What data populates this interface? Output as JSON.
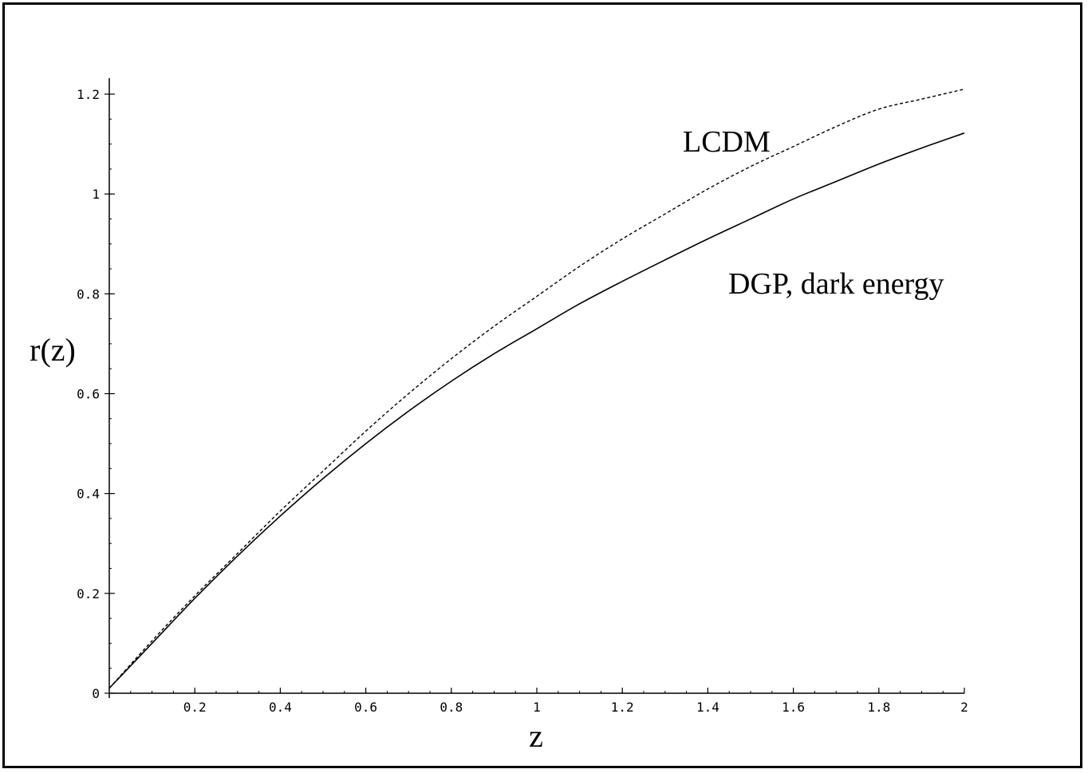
{
  "chart_data": {
    "type": "line",
    "xlabel": "z",
    "ylabel": "r(z)",
    "xlim": [
      0,
      2
    ],
    "ylim": [
      0,
      1.2
    ],
    "x_ticks": [
      {
        "value": 0.2,
        "label": "0.2"
      },
      {
        "value": 0.4,
        "label": "0.4"
      },
      {
        "value": 0.6,
        "label": "0.6"
      },
      {
        "value": 0.8,
        "label": "0.8"
      },
      {
        "value": 1.0,
        "label": "1"
      },
      {
        "value": 1.2,
        "label": "1.2"
      },
      {
        "value": 1.4,
        "label": "1.4"
      },
      {
        "value": 1.6,
        "label": "1.6"
      },
      {
        "value": 1.8,
        "label": "1.8"
      },
      {
        "value": 2.0,
        "label": "2"
      }
    ],
    "y_ticks": [
      {
        "value": 0,
        "label": "0"
      },
      {
        "value": 0.2,
        "label": "0.2"
      },
      {
        "value": 0.4,
        "label": "0.4"
      },
      {
        "value": 0.6,
        "label": "0.6"
      },
      {
        "value": 0.8,
        "label": "0.8"
      },
      {
        "value": 1.0,
        "label": "1"
      },
      {
        "value": 1.2,
        "label": "1.2"
      }
    ],
    "annotations": [
      {
        "text": "LCDM",
        "series": "lcdm"
      },
      {
        "text": "DGP, dark energy",
        "series": "dgp"
      }
    ],
    "series": [
      {
        "id": "lcdm",
        "style": "dashed",
        "x": [
          0.0,
          0.1,
          0.2,
          0.3,
          0.4,
          0.5,
          0.6,
          0.7,
          0.8,
          0.9,
          1.0,
          1.1,
          1.2,
          1.3,
          1.4,
          1.5,
          1.6,
          1.7,
          1.8,
          1.9,
          2.0
        ],
        "y": [
          0.01,
          0.105,
          0.195,
          0.28,
          0.365,
          0.445,
          0.525,
          0.6,
          0.67,
          0.735,
          0.795,
          0.855,
          0.91,
          0.96,
          1.01,
          1.055,
          1.095,
          1.135,
          1.17,
          1.19,
          1.21
        ]
      },
      {
        "id": "dgp",
        "style": "solid",
        "x": [
          0.0,
          0.1,
          0.2,
          0.3,
          0.4,
          0.5,
          0.6,
          0.7,
          0.8,
          0.9,
          1.0,
          1.1,
          1.2,
          1.3,
          1.4,
          1.5,
          1.6,
          1.7,
          1.8,
          1.9,
          2.0
        ],
        "y": [
          0.01,
          0.1,
          0.19,
          0.275,
          0.355,
          0.43,
          0.5,
          0.565,
          0.625,
          0.68,
          0.73,
          0.78,
          0.825,
          0.868,
          0.91,
          0.95,
          0.99,
          1.025,
          1.06,
          1.092,
          1.122
        ]
      }
    ]
  }
}
